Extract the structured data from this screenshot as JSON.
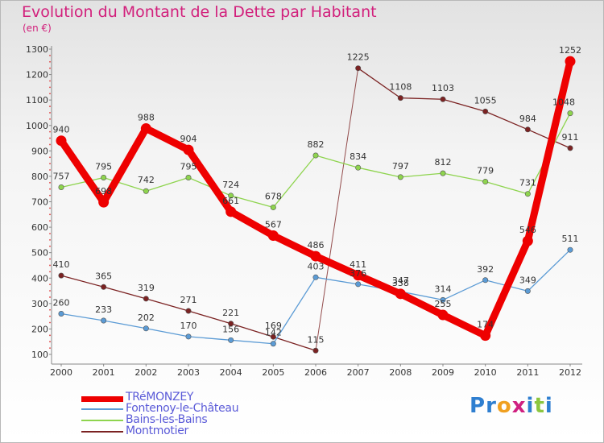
{
  "chart_data": {
    "type": "line",
    "title": "Evolution du Montant de la Dette par Habitant",
    "subtitle": "(en €)",
    "xlabel": "",
    "ylabel": "",
    "x": [
      "2000",
      "2001",
      "2002",
      "2003",
      "2004",
      "2005",
      "2006",
      "2007",
      "2008",
      "2009",
      "2010",
      "2011",
      "2012"
    ],
    "yticks": [
      100,
      200,
      300,
      400,
      500,
      600,
      700,
      800,
      900,
      1000,
      1100,
      1200,
      1300
    ],
    "ylim": [
      100,
      1300
    ],
    "grid": false,
    "legend_position": "bottom-left",
    "series": [
      {
        "name": "TRéMONZEY",
        "color": "#ee0000",
        "thick": true,
        "values": [
          940,
          698,
          988,
          904,
          661,
          567,
          486,
          411,
          338,
          255,
          174,
          546,
          1252
        ],
        "labels": [
          "940",
          "698",
          "988",
          "904",
          "661",
          "567",
          "486",
          "411",
          "338",
          "255",
          "174",
          "546",
          "1252"
        ]
      },
      {
        "name": "Fontenoy-le-Château",
        "color": "#5b9bd5",
        "thick": false,
        "values": [
          260,
          233,
          202,
          170,
          156,
          142,
          403,
          376,
          347,
          314,
          392,
          349,
          511
        ],
        "labels": [
          "260",
          "233",
          "202",
          "170",
          "156",
          "142",
          "403",
          "376",
          "347",
          "314",
          "392",
          "349",
          "511"
        ]
      },
      {
        "name": "Bains-les-Bains",
        "color": "#8ed44e",
        "thick": false,
        "values": [
          757,
          795,
          742,
          795,
          724,
          678,
          882,
          834,
          797,
          812,
          779,
          731,
          1048
        ],
        "labels": [
          "757",
          "795",
          "742",
          "795",
          "724",
          "678",
          "882",
          "834",
          "797",
          "812",
          "779",
          "731",
          "1048"
        ]
      },
      {
        "name": "Montmotier",
        "color": "#7b2222",
        "thick": false,
        "values": [
          410,
          365,
          319,
          271,
          221,
          169,
          115,
          1225,
          1108,
          1103,
          1055,
          984,
          911
        ],
        "labels": [
          "410",
          "365",
          "319",
          "271",
          "221",
          "169",
          "115",
          "1225",
          "1108",
          "1103",
          "1055",
          "984",
          "911"
        ]
      }
    ]
  },
  "brand": {
    "letters": [
      "P",
      "r",
      "o",
      "x",
      "i",
      "t",
      "i"
    ],
    "colors": [
      "#2f7fd0",
      "#2f7fd0",
      "#f0a020",
      "#d02080",
      "#2f7fd0",
      "#8cc63f",
      "#2f7fd0"
    ]
  }
}
